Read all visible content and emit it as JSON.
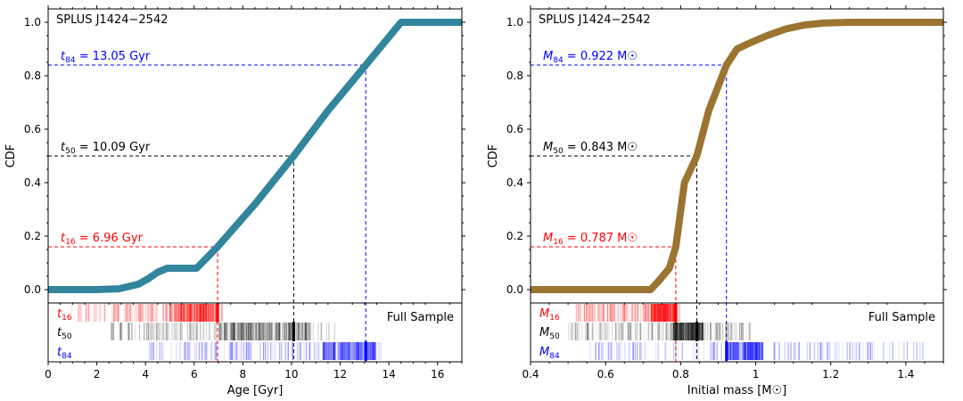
{
  "chart_data": [
    {
      "type": "line",
      "title": "SPLUS J1424−2542",
      "xlabel": "Age [Gyr]",
      "ylabel": "CDF",
      "xlim": [
        0,
        17
      ],
      "ylim": [
        -0.05,
        1.05
      ],
      "xticks": [
        0,
        2,
        4,
        6,
        8,
        10,
        12,
        14,
        16
      ],
      "yticks": [
        0.0,
        0.2,
        0.4,
        0.6,
        0.8,
        1.0
      ],
      "curve_color": "#31859c",
      "x": [
        0,
        2,
        2.9,
        3.7,
        4.1,
        4.5,
        4.9,
        6.1,
        6.96,
        8.5,
        10.09,
        11.5,
        13.05,
        14.5,
        15.5,
        17
      ],
      "y": [
        0,
        0,
        0.003,
        0.02,
        0.04,
        0.065,
        0.08,
        0.08,
        0.16,
        0.32,
        0.5,
        0.67,
        0.84,
        1.0,
        1.0,
        1.0
      ],
      "percentiles": [
        {
          "name": "t16",
          "sym": "t",
          "sub": "16",
          "label": " = 6.96 Gyr",
          "x": 6.96,
          "y": 0.16,
          "color": "#ff0000"
        },
        {
          "name": "t50",
          "sym": "t",
          "sub": "50",
          "label": " = 10.09 Gyr",
          "x": 10.09,
          "y": 0.5,
          "color": "#000000"
        },
        {
          "name": "t84",
          "sym": "t",
          "sub": "84",
          "label": " = 13.05 Gyr",
          "x": 13.05,
          "y": 0.84,
          "color": "#0000ff"
        }
      ],
      "strip_label": "Full Sample",
      "strips": [
        {
          "sym": "t",
          "sub": "16",
          "color": "#ff0000",
          "range": [
            0.8,
            7.2
          ],
          "peak": [
            5.2,
            6.96
          ],
          "mark": 6.96
        },
        {
          "sym": "t",
          "sub": "50",
          "color": "#000000",
          "range": [
            2.5,
            11.8
          ],
          "peak": [
            7.0,
            10.8
          ],
          "mark": 10.09
        },
        {
          "sym": "t",
          "sub": "84",
          "color": "#0000ff",
          "range": [
            4.0,
            13.8
          ],
          "peak": [
            11.3,
            13.5
          ],
          "mark": 13.05
        }
      ]
    },
    {
      "type": "line",
      "title": "SPLUS J1424−2542",
      "xlabel": "Initial mass [M☉]",
      "ylabel": "CDF",
      "xlim": [
        0.4,
        1.5
      ],
      "ylim": [
        -0.05,
        1.05
      ],
      "xticks": [
        0.4,
        0.6,
        0.8,
        1.0,
        1.2,
        1.4
      ],
      "yticks": [
        0.0,
        0.2,
        0.4,
        0.6,
        0.8,
        1.0
      ],
      "curve_color": "#9c7431",
      "x": [
        0.4,
        0.72,
        0.74,
        0.77,
        0.787,
        0.81,
        0.843,
        0.875,
        0.922,
        0.95,
        0.98,
        1.03,
        1.08,
        1.13,
        1.18,
        1.25,
        1.5
      ],
      "y": [
        0,
        0,
        0.03,
        0.08,
        0.16,
        0.4,
        0.5,
        0.67,
        0.84,
        0.9,
        0.92,
        0.95,
        0.975,
        0.99,
        0.997,
        1.0,
        1.0
      ],
      "percentiles": [
        {
          "name": "M16",
          "sym": "M",
          "sub": "16",
          "label": " = 0.787 M☉",
          "x": 0.787,
          "y": 0.16,
          "color": "#ff0000"
        },
        {
          "name": "M50",
          "sym": "M",
          "sub": "50",
          "label": " = 0.843 M☉",
          "x": 0.843,
          "y": 0.5,
          "color": "#000000"
        },
        {
          "name": "M84",
          "sym": "M",
          "sub": "84",
          "label": " = 0.922 M☉",
          "x": 0.922,
          "y": 0.84,
          "color": "#0000ff"
        }
      ],
      "strip_label": "Full Sample",
      "strips": [
        {
          "sym": "M",
          "sub": "16",
          "color": "#ff0000",
          "range": [
            0.52,
            0.8
          ],
          "peak": [
            0.72,
            0.79
          ],
          "mark": 0.787
        },
        {
          "sym": "M",
          "sub": "50",
          "color": "#000000",
          "range": [
            0.5,
            0.99
          ],
          "peak": [
            0.78,
            0.86
          ],
          "mark": 0.843
        },
        {
          "sym": "M",
          "sub": "84",
          "color": "#0000ff",
          "range": [
            0.55,
            1.45
          ],
          "peak": [
            0.92,
            1.02
          ],
          "mark": 0.922
        }
      ]
    }
  ]
}
